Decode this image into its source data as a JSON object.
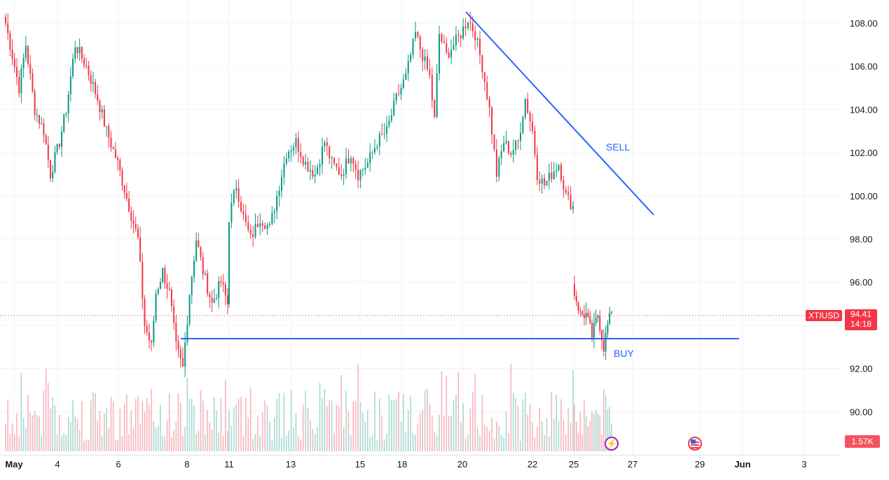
{
  "symbol": "XTIUSD",
  "last_price": "94.41",
  "countdown": "14:18",
  "volume_label": "1.57K",
  "colors": {
    "up": "#089981",
    "down": "#f23645",
    "trendline": "#2962ff",
    "vol_up": "#a9d9d0",
    "vol_down": "#f7b4bb"
  },
  "annotations": {
    "sell": "SELL",
    "buy": "BUY"
  },
  "icons": {
    "event_1": "lightning-icon",
    "event_2": "us-flag-icon"
  },
  "chart_data": {
    "type": "candlestick",
    "title": "",
    "xlabel": "",
    "ylabel": "",
    "ylim": [
      88.0,
      109.0
    ],
    "y_ticks": [
      "108.00",
      "106.00",
      "104.00",
      "102.00",
      "100.00",
      "98.00",
      "96.00",
      "94.00",
      "92.00",
      "90.00"
    ],
    "x_ticks": [
      "May",
      "4",
      "6",
      "8",
      "11",
      "13",
      "15",
      "18",
      "20",
      "22",
      "25",
      "27",
      "29",
      "Jun",
      "3"
    ],
    "anchors": [
      [
        0,
        108.0
      ],
      [
        3,
        106.5
      ],
      [
        6,
        105.0
      ],
      [
        9,
        107.0
      ],
      [
        13,
        104.0
      ],
      [
        17,
        103.0
      ],
      [
        20,
        101.0
      ],
      [
        24,
        102.5
      ],
      [
        27,
        104.0
      ],
      [
        31,
        107.0
      ],
      [
        36,
        106.0
      ],
      [
        41,
        104.5
      ],
      [
        45,
        103.0
      ],
      [
        50,
        101.5
      ],
      [
        55,
        99.5
      ],
      [
        59,
        98.0
      ],
      [
        62,
        94.0
      ],
      [
        65,
        93.0
      ],
      [
        67,
        95.5
      ],
      [
        70,
        96.5
      ],
      [
        73,
        95.5
      ],
      [
        76,
        93.0
      ],
      [
        79,
        92.0
      ],
      [
        82,
        95.5
      ],
      [
        85,
        98.0
      ],
      [
        88,
        96.5
      ],
      [
        92,
        95.0
      ],
      [
        96,
        96.0
      ],
      [
        99,
        95.0
      ],
      [
        100,
        99.0
      ],
      [
        103,
        100.5
      ],
      [
        106,
        99.0
      ],
      [
        109,
        98.0
      ],
      [
        113,
        99.0
      ],
      [
        117,
        98.5
      ],
      [
        120,
        100.0
      ],
      [
        124,
        102.0
      ],
      [
        128,
        102.5
      ],
      [
        132,
        101.5
      ],
      [
        136,
        101.0
      ],
      [
        140,
        102.5
      ],
      [
        143,
        101.5
      ],
      [
        147,
        101.0
      ],
      [
        151,
        102.0
      ],
      [
        154,
        101.0
      ],
      [
        158,
        101.5
      ],
      [
        162,
        102.5
      ],
      [
        166,
        103.0
      ],
      [
        170,
        104.5
      ],
      [
        174,
        105.5
      ],
      [
        178,
        107.5
      ],
      [
        181,
        106.5
      ],
      [
        184,
        105.5
      ],
      [
        186,
        103.5
      ],
      [
        188,
        107.5
      ],
      [
        191,
        106.5
      ],
      [
        194,
        107.0
      ],
      [
        197,
        107.5
      ],
      [
        200,
        108.2
      ],
      [
        203,
        107.5
      ],
      [
        206,
        106.0
      ],
      [
        209,
        104.0
      ],
      [
        212,
        101.0
      ],
      [
        215,
        102.5
      ],
      [
        218,
        102.0
      ],
      [
        221,
        102.5
      ],
      [
        224,
        104.5
      ],
      [
        227,
        103.0
      ],
      [
        229,
        101.0
      ],
      [
        232,
        100.5
      ],
      [
        235,
        101.0
      ],
      [
        238,
        101.5
      ],
      [
        241,
        100.0
      ],
      [
        244,
        99.5
      ],
      [
        245,
        95.5
      ],
      [
        248,
        94.5
      ],
      [
        251,
        94.5
      ],
      [
        254,
        93.5
      ],
      [
        257,
        94.5
      ],
      [
        260,
        93.0
      ],
      [
        262,
        94.0
      ],
      [
        264,
        94.6
      ]
    ]
  }
}
